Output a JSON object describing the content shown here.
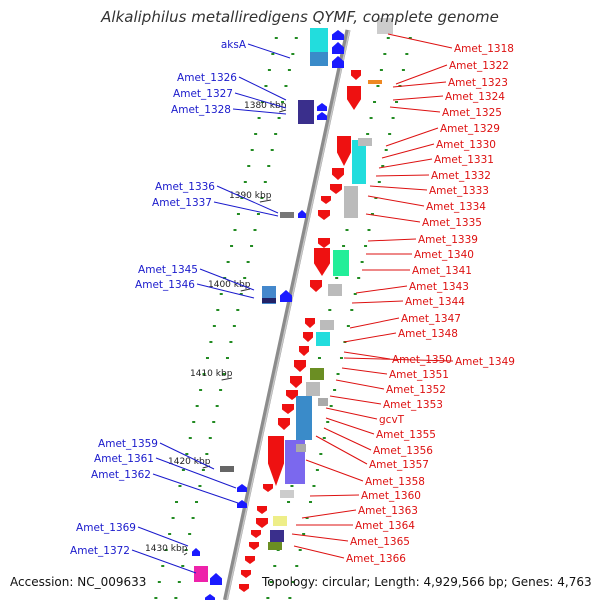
{
  "title": "Alkaliphilus metalliredigens QYMF, complete genome",
  "footer": {
    "accession": "Accession: NC_009633",
    "topology": "Topology: circular; Length: 4,929,566 bp; Genes: 4,763"
  },
  "colors": {
    "backbone": "#8c8c8c",
    "ticks": "#228b22",
    "left_labels": "#1a1acc",
    "right_labels": "#dd1111",
    "forward_strand": "#ee1111",
    "reverse_strand": "#1a1aff"
  },
  "scale_labels": [
    "1380 kbp",
    "1390 kbp",
    "1400 kbp",
    "1410 kbp",
    "1420 kbp",
    "1430 kbp"
  ],
  "left_genes": [
    "aksA",
    "Amet_1326",
    "Amet_1327",
    "Amet_1328",
    "Amet_1336",
    "Amet_1337",
    "Amet_1345",
    "Amet_1346",
    "Amet_1359",
    "Amet_1361",
    "Amet_1362",
    "Amet_1369",
    "Amet_1372"
  ],
  "right_genes": [
    "Amet_1318",
    "Amet_1322",
    "Amet_1323",
    "Amet_1324",
    "Amet_1325",
    "Amet_1329",
    "Amet_1330",
    "Amet_1331",
    "Amet_1332",
    "Amet_1333",
    "Amet_1334",
    "Amet_1335",
    "Amet_1339",
    "Amet_1340",
    "Amet_1341",
    "Amet_1343",
    "Amet_1344",
    "Amet_1347",
    "Amet_1348",
    "Amet_1350",
    "Amet_1349",
    "Amet_1351",
    "Amet_1352",
    "Amet_1353",
    "gcvT",
    "Amet_1355",
    "Amet_1356",
    "Amet_1357",
    "Amet_1358",
    "Amet_1360",
    "Amet_1363",
    "Amet_1364",
    "Amet_1365",
    "Amet_1366"
  ]
}
